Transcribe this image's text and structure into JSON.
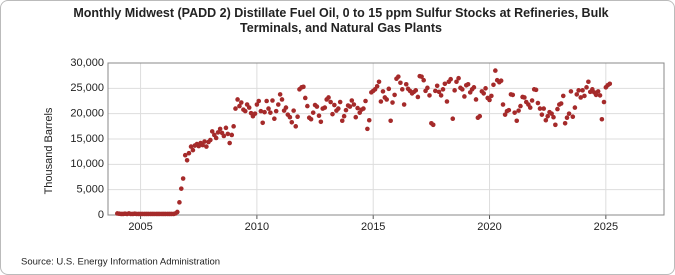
{
  "chart_data": {
    "type": "scatter",
    "title": "Monthly Midwest (PADD 2) Distillate Fuel Oil, 0 to 15 ppm Sulfur Stocks at Refineries, Bulk Terminals, and Natural Gas Plants",
    "y_label": "Thousand Barrels",
    "source": "Source: U.S. Energy Information Administration",
    "color": "#a52a2a",
    "grid": true,
    "xlim": [
      2003.6,
      2027.5
    ],
    "xticks": [
      2005,
      2010,
      2015,
      2020,
      2025
    ],
    "ylim": [
      0,
      30000
    ],
    "yticks": [
      0,
      {
        "value": 5000,
        "label": "5,000"
      },
      {
        "value": 10000,
        "label": "10,000"
      },
      {
        "value": 15000,
        "label": "15,000"
      },
      {
        "value": 20000,
        "label": "20,000"
      },
      {
        "value": 25000,
        "label": "25,000"
      },
      {
        "value": 30000,
        "label": "30,000"
      }
    ],
    "x": [
      2004,
      2004.08,
      2004.17,
      2004.25,
      2004.33,
      2004.42,
      2004.5,
      2004.58,
      2004.67,
      2004.75,
      2004.83,
      2004.92,
      2005,
      2005.08,
      2005.17,
      2005.25,
      2005.33,
      2005.42,
      2005.5,
      2005.58,
      2005.67,
      2005.75,
      2005.83,
      2005.92,
      2006,
      2006.08,
      2006.17,
      2006.25,
      2006.33,
      2006.42,
      2006.5,
      2006.58,
      2006.67,
      2006.75,
      2006.83,
      2006.92,
      2007,
      2007.08,
      2007.17,
      2007.25,
      2007.33,
      2007.42,
      2007.5,
      2007.58,
      2007.67,
      2007.75,
      2007.83,
      2007.92,
      2008,
      2008.08,
      2008.17,
      2008.25,
      2008.33,
      2008.42,
      2008.5,
      2008.58,
      2008.67,
      2008.75,
      2008.83,
      2008.92,
      2009,
      2009.08,
      2009.17,
      2009.25,
      2009.33,
      2009.42,
      2009.5,
      2009.58,
      2009.67,
      2009.75,
      2009.83,
      2009.92,
      2010,
      2010.08,
      2010.17,
      2010.25,
      2010.33,
      2010.42,
      2010.5,
      2010.58,
      2010.67,
      2010.75,
      2010.83,
      2010.92,
      2011,
      2011.08,
      2011.17,
      2011.25,
      2011.33,
      2011.42,
      2011.5,
      2011.58,
      2011.67,
      2011.75,
      2011.83,
      2011.92,
      2012,
      2012.08,
      2012.17,
      2012.25,
      2012.33,
      2012.42,
      2012.5,
      2012.58,
      2012.67,
      2012.75,
      2012.83,
      2012.92,
      2013,
      2013.08,
      2013.17,
      2013.25,
      2013.33,
      2013.42,
      2013.5,
      2013.58,
      2013.67,
      2013.75,
      2013.83,
      2013.92,
      2014,
      2014.08,
      2014.17,
      2014.25,
      2014.33,
      2014.42,
      2014.5,
      2014.58,
      2014.67,
      2014.75,
      2014.83,
      2014.92,
      2015,
      2015.08,
      2015.17,
      2015.25,
      2015.33,
      2015.42,
      2015.5,
      2015.58,
      2015.67,
      2015.75,
      2015.83,
      2015.92,
      2016,
      2016.08,
      2016.17,
      2016.25,
      2016.33,
      2016.42,
      2016.5,
      2016.58,
      2016.67,
      2016.75,
      2016.83,
      2016.92,
      2017,
      2017.08,
      2017.17,
      2017.25,
      2017.33,
      2017.42,
      2017.5,
      2017.58,
      2017.67,
      2017.75,
      2017.83,
      2017.92,
      2018,
      2018.08,
      2018.17,
      2018.25,
      2018.33,
      2018.42,
      2018.5,
      2018.58,
      2018.67,
      2018.75,
      2018.83,
      2018.92,
      2019,
      2019.08,
      2019.17,
      2019.25,
      2019.33,
      2019.42,
      2019.5,
      2019.58,
      2019.67,
      2019.75,
      2019.83,
      2019.92,
      2020,
      2020.08,
      2020.17,
      2020.25,
      2020.33,
      2020.42,
      2020.5,
      2020.58,
      2020.67,
      2020.75,
      2020.83,
      2020.92,
      2021,
      2021.08,
      2021.17,
      2021.25,
      2021.33,
      2021.42,
      2021.5,
      2021.58,
      2021.67,
      2021.75,
      2021.83,
      2021.92,
      2022,
      2022.08,
      2022.17,
      2022.25,
      2022.33,
      2022.42,
      2022.5,
      2022.58,
      2022.67,
      2022.75,
      2022.83,
      2022.92,
      2023,
      2023.08,
      2023.17,
      2023.25,
      2023.33,
      2023.42,
      2023.5,
      2023.58,
      2023.67,
      2023.75,
      2023.83,
      2023.92,
      2024,
      2024.08,
      2024.17,
      2024.25,
      2024.33,
      2024.42,
      2024.5,
      2024.58,
      2024.67,
      2024.75,
      2024.83,
      2024.92,
      2025,
      2025.08,
      2025.17
    ],
    "values": [
      300,
      250,
      200,
      200,
      250,
      200,
      300,
      200,
      200,
      250,
      200,
      200,
      200,
      200,
      200,
      200,
      200,
      200,
      200,
      200,
      200,
      200,
      200,
      200,
      200,
      200,
      200,
      200,
      200,
      200,
      300,
      600,
      2500,
      5200,
      7200,
      11800,
      10800,
      12200,
      13500,
      12800,
      13700,
      14000,
      13600,
      14200,
      13800,
      14500,
      13500,
      14400,
      14800,
      16500,
      15800,
      15200,
      16300,
      17000,
      16200,
      15600,
      17200,
      16000,
      14200,
      15800,
      17500,
      21000,
      22800,
      21500,
      22200,
      20800,
      20500,
      21800,
      21200,
      20100,
      19500,
      20000,
      21800,
      22500,
      20500,
      18200,
      20300,
      22500,
      21000,
      20200,
      22600,
      19000,
      20500,
      21800,
      23800,
      22800,
      20600,
      21200,
      19800,
      19300,
      18300,
      20600,
      17500,
      19400,
      24800,
      25200,
      25300,
      23100,
      21500,
      19200,
      18900,
      20200,
      21700,
      21400,
      19600,
      18400,
      21000,
      21200,
      22800,
      23200,
      22300,
      19900,
      21700,
      20600,
      21000,
      22300,
      18600,
      19500,
      20700,
      21600,
      21400,
      22600,
      21800,
      19300,
      21100,
      20200,
      20800,
      21000,
      22500,
      17000,
      18700,
      24200,
      24500,
      24800,
      25400,
      26300,
      22400,
      24400,
      23200,
      22800,
      24900,
      18600,
      22200,
      23700,
      26900,
      27300,
      26100,
      24800,
      21800,
      25800,
      24900,
      24500,
      24000,
      24300,
      24600,
      23300,
      27400,
      27300,
      26600,
      24500,
      25100,
      23600,
      18100,
      17800,
      24500,
      25500,
      24300,
      23600,
      24800,
      25900,
      22400,
      26300,
      26800,
      19000,
      24600,
      26300,
      27000,
      25100,
      24800,
      23400,
      25600,
      25800,
      24200,
      24800,
      25200,
      22800,
      19200,
      19500,
      24400,
      24000,
      25000,
      23100,
      22700,
      23500,
      25700,
      28500,
      26600,
      26200,
      26500,
      21800,
      19800,
      20500,
      20700,
      23800,
      23700,
      20200,
      18600,
      20600,
      21500,
      23300,
      23200,
      22300,
      21800,
      21200,
      22600,
      24800,
      24700,
      22100,
      21000,
      19800,
      21000,
      18700,
      19500,
      20300,
      20000,
      19300,
      17800,
      20900,
      21800,
      22000,
      23500,
      18100,
      19200,
      20000,
      24400,
      19400,
      21200,
      23800,
      24600,
      23200,
      24600,
      23500,
      25200,
      26300,
      24300,
      24800,
      24200,
      23700,
      24400,
      23600,
      18900,
      22300,
      25200,
      25600,
      25900
    ]
  }
}
